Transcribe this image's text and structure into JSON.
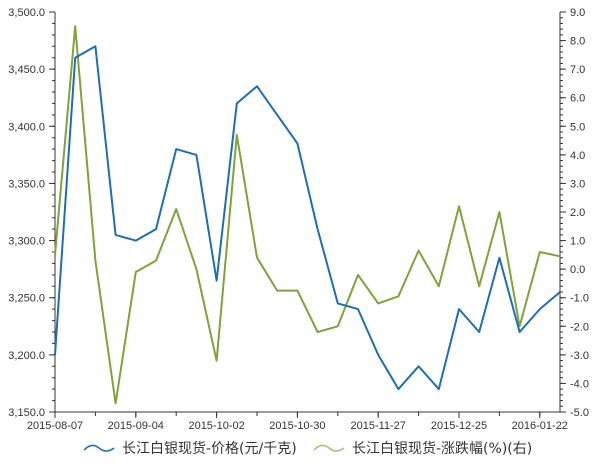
{
  "chart_data": {
    "type": "line",
    "title": "",
    "xlabel": "",
    "ylabel": "",
    "x": [
      "2015-08-07",
      "2015-08-14",
      "2015-08-21",
      "2015-08-28",
      "2015-09-04",
      "2015-09-11",
      "2015-09-18",
      "2015-09-25",
      "2015-10-02",
      "2015-10-09",
      "2015-10-16",
      "2015-10-23",
      "2015-10-30",
      "2015-11-06",
      "2015-11-13",
      "2015-11-20",
      "2015-11-27",
      "2015-12-04",
      "2015-12-11",
      "2015-12-18",
      "2015-12-25",
      "2016-01-01",
      "2016-01-08",
      "2016-01-15",
      "2016-01-22",
      "2016-01-29"
    ],
    "x_tick_labels": [
      "2015-08-07",
      "2015-09-04",
      "2015-10-02",
      "2015-10-30",
      "2015-11-27",
      "2015-12-25",
      "2016-01-22"
    ],
    "series": [
      {
        "name": "长江白银现货-价格(元/千克)",
        "axis": "left",
        "color": "#1f6db4",
        "values": [
          3200,
          3460,
          3470,
          3305,
          3300,
          3310,
          3380,
          3375,
          3265,
          3420,
          3435,
          3410,
          3385,
          3310,
          3245,
          3240,
          3200,
          3170,
          3190,
          3170,
          3240,
          3220,
          3285,
          3220,
          3240,
          3255
        ]
      },
      {
        "name": "长江白银现货-涨跌幅(%)(右)",
        "axis": "right",
        "color": "#7fa33a",
        "values": [
          0.5,
          8.5,
          0.3,
          -4.7,
          -0.1,
          0.3,
          2.1,
          0.0,
          -3.2,
          4.7,
          0.4,
          -0.75,
          -0.75,
          -2.2,
          -2.0,
          -0.2,
          -1.2,
          -0.95,
          0.65,
          -0.6,
          2.2,
          -0.6,
          2.0,
          -2.0,
          0.6,
          0.45
        ]
      }
    ],
    "left_axis": {
      "ylim": [
        3150,
        3500
      ],
      "ticks": [
        3150,
        3200,
        3250,
        3300,
        3350,
        3400,
        3450,
        3500
      ],
      "tick_labels": [
        "3,150.0",
        "3,200.0",
        "3,250.0",
        "3,300.0",
        "3,350.0",
        "3,400.0",
        "3,450.0",
        "3,500.0"
      ]
    },
    "right_axis": {
      "ylim": [
        -5,
        9
      ],
      "ticks": [
        -5,
        -4,
        -3,
        -2,
        -1,
        0,
        1,
        2,
        3,
        4,
        5,
        6,
        7,
        8,
        9
      ],
      "tick_labels": [
        "-5.0",
        "-4.0",
        "-3.0",
        "-2.0",
        "-1.0",
        "0.0",
        "1.0",
        "2.0",
        "3.0",
        "4.0",
        "5.0",
        "6.0",
        "7.0",
        "8.0",
        "9.0"
      ]
    },
    "grid": false,
    "legend_position": "bottom"
  },
  "legend": {
    "items": [
      {
        "label": "长江白银现货-价格(元/千克)",
        "color": "#1f6db4"
      },
      {
        "label": "长江白银现货-涨跌幅(%)(右)",
        "color": "#7fa33a"
      }
    ]
  }
}
